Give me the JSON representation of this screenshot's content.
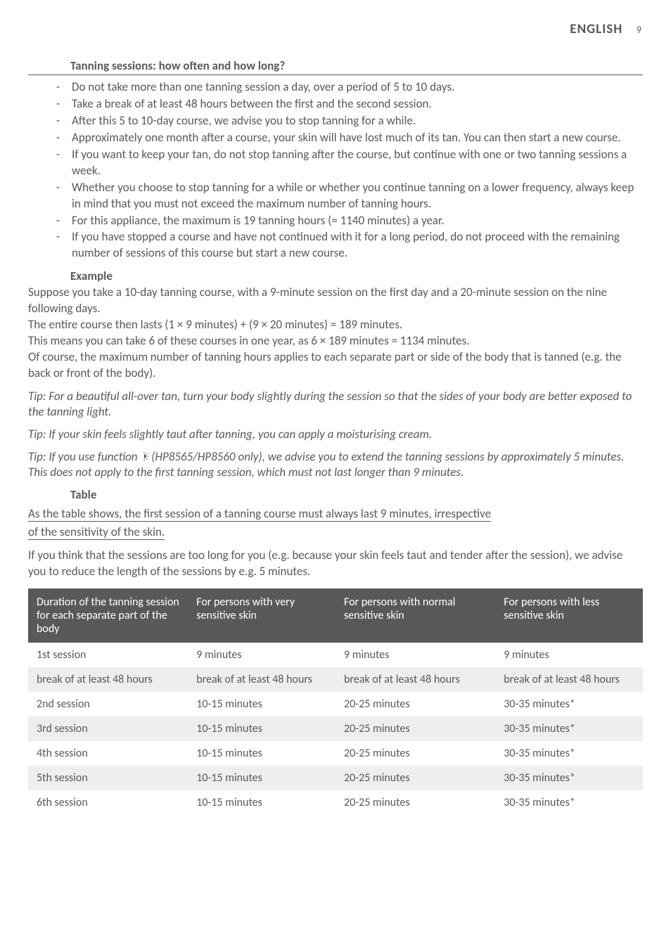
{
  "header": {
    "language": "ENGLISH",
    "page_number": "9"
  },
  "sections": {
    "main_heading": "Tanning sessions: how often and how long?",
    "bullets": [
      "Do not take more than one tanning session a day, over a period of 5 to 10 days.",
      "Take a break of at least 48 hours between the first and the second session.",
      "After this 5 to 10-day course, we advise you to stop tanning for a while.",
      "Approximately one month after a course, your skin will have lost much of its tan. You can then start a new course.",
      "If you want to keep your tan, do not stop tanning after the course, but continue with one or two tanning sessions a week.",
      "Whether you choose to stop tanning for a while or whether you continue tanning on a lower frequency, always keep in mind that you must not exceed the maximum number of tanning hours.",
      "For this appliance, the maximum is 19 tanning hours (= 1140 minutes) a year.",
      "If you have stopped a course and have not continued with it for a long period, do not proceed with the remaining number of sessions of this course but start a new course."
    ],
    "example_heading": "Example",
    "example_body": [
      "Suppose you take a 10-day tanning course, with a 9-minute session on the first day and a 20-minute session on the nine following days.",
      "The entire course then lasts (1 × 9 minutes) + (9 × 20 minutes) = 189 minutes.",
      "This means you can take 6 of these courses in one year, as 6 × 189 minutes = 1134 minutes.",
      "Of course, the maximum number of tanning hours applies to each separate part or side of the body that is tanned (e.g. the back or front of the body)."
    ],
    "tip1": "Tip: For a beautiful all-over tan, turn your body slightly during the session so that the sides of your body are better exposed to the tanning light.",
    "tip2": "Tip: If your skin feels slightly taut after tanning, you can apply a moisturising cream.",
    "tip3_before": "Tip: If you use function ",
    "tip3_after": " (HP8565/HP8560 only), we advise you to extend the tanning sessions by approximately 5 minutes. This does not apply to the first tanning session, which must not last longer than 9 minutes.",
    "table_heading": "Table",
    "underlined_note_l1": "As the table shows, the first session of a tanning course must always last 9 minutes, irrespective ",
    "underlined_note_l2": "of the sensitivity of the skin.",
    "post_note": "If you think that the sessions are too long for you (e.g. because your skin feels taut and tender after the session), we advise you to reduce the length of the sessions by e.g. 5 minutes."
  },
  "table": {
    "headers": [
      "Duration of the tanning session for each separate part of the body",
      "For persons with very sensitive skin",
      "For persons with normal sensitive skin",
      "For persons with less sensitive skin"
    ],
    "rows": [
      {
        "alt": false,
        "cells": [
          "1st session",
          "9 minutes",
          "9 minutes",
          "9 minutes"
        ]
      },
      {
        "alt": true,
        "cells": [
          "break of at least 48 hours",
          "break of at least 48 hours",
          "break of at least 48 hours",
          "break of at least 48 hours"
        ]
      },
      {
        "alt": false,
        "cells": [
          "2nd session",
          "10-15 minutes",
          "20-25 minutes",
          "30-35 minutes*"
        ]
      },
      {
        "alt": true,
        "cells": [
          "3rd session",
          "10-15 minutes",
          "20-25 minutes",
          "30-35 minutes*"
        ]
      },
      {
        "alt": false,
        "cells": [
          "4th session",
          "10-15 minutes",
          "20-25 minutes",
          "30-35 minutes*"
        ]
      },
      {
        "alt": true,
        "cells": [
          "5th session",
          "10-15 minutes",
          "20-25 minutes",
          "30-35 minutes*"
        ]
      },
      {
        "alt": false,
        "cells": [
          "6th session",
          "10-15 minutes",
          "20-25 minutes",
          "30-35 minutes*"
        ]
      }
    ]
  },
  "colors": {
    "text": "#58595b",
    "table_header_bg": "#58595b",
    "table_header_fg": "#ffffff",
    "row_alt_bg": "#eeeeef",
    "background": "#ffffff"
  },
  "typography": {
    "body_fontsize_pt": 13,
    "heading_fontsize_pt": 13,
    "header_lang_fontsize_pt": 14
  }
}
